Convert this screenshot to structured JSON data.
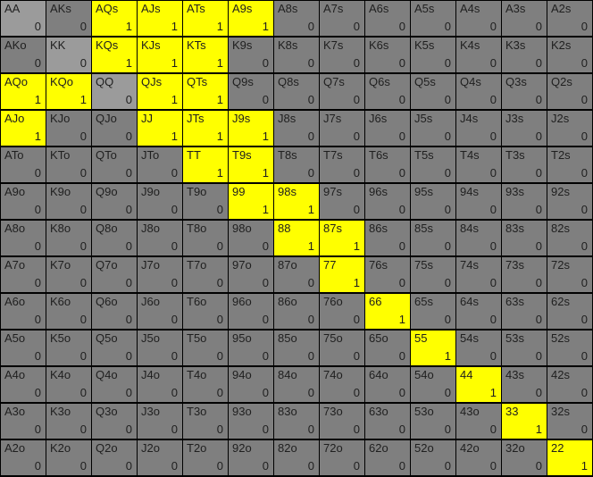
{
  "colors": {
    "selected": "#ffff00",
    "pair_unselected": "#9b9b9b",
    "unselected": "#7f7f7f",
    "grid_line": "#000000",
    "text": "#1f1f1f"
  },
  "grid": {
    "rows": [
      [
        {
          "hand": "AA",
          "value": "0",
          "state": "pair"
        },
        {
          "hand": "AKs",
          "value": "0",
          "state": "off"
        },
        {
          "hand": "AQs",
          "value": "1",
          "state": "on"
        },
        {
          "hand": "AJs",
          "value": "1",
          "state": "on"
        },
        {
          "hand": "ATs",
          "value": "1",
          "state": "on"
        },
        {
          "hand": "A9s",
          "value": "1",
          "state": "on"
        },
        {
          "hand": "A8s",
          "value": "0",
          "state": "off"
        },
        {
          "hand": "A7s",
          "value": "0",
          "state": "off"
        },
        {
          "hand": "A6s",
          "value": "0",
          "state": "off"
        },
        {
          "hand": "A5s",
          "value": "0",
          "state": "off"
        },
        {
          "hand": "A4s",
          "value": "0",
          "state": "off"
        },
        {
          "hand": "A3s",
          "value": "0",
          "state": "off"
        },
        {
          "hand": "A2s",
          "value": "0",
          "state": "off"
        }
      ],
      [
        {
          "hand": "AKo",
          "value": "0",
          "state": "off"
        },
        {
          "hand": "KK",
          "value": "0",
          "state": "pair"
        },
        {
          "hand": "KQs",
          "value": "1",
          "state": "on"
        },
        {
          "hand": "KJs",
          "value": "1",
          "state": "on"
        },
        {
          "hand": "KTs",
          "value": "1",
          "state": "on"
        },
        {
          "hand": "K9s",
          "value": "0",
          "state": "off"
        },
        {
          "hand": "K8s",
          "value": "0",
          "state": "off"
        },
        {
          "hand": "K7s",
          "value": "0",
          "state": "off"
        },
        {
          "hand": "K6s",
          "value": "0",
          "state": "off"
        },
        {
          "hand": "K5s",
          "value": "0",
          "state": "off"
        },
        {
          "hand": "K4s",
          "value": "0",
          "state": "off"
        },
        {
          "hand": "K3s",
          "value": "0",
          "state": "off"
        },
        {
          "hand": "K2s",
          "value": "0",
          "state": "off"
        }
      ],
      [
        {
          "hand": "AQo",
          "value": "1",
          "state": "on"
        },
        {
          "hand": "KQo",
          "value": "1",
          "state": "on"
        },
        {
          "hand": "QQ",
          "value": "0",
          "state": "pair"
        },
        {
          "hand": "QJs",
          "value": "1",
          "state": "on"
        },
        {
          "hand": "QTs",
          "value": "1",
          "state": "on"
        },
        {
          "hand": "Q9s",
          "value": "0",
          "state": "off"
        },
        {
          "hand": "Q8s",
          "value": "0",
          "state": "off"
        },
        {
          "hand": "Q7s",
          "value": "0",
          "state": "off"
        },
        {
          "hand": "Q6s",
          "value": "0",
          "state": "off"
        },
        {
          "hand": "Q5s",
          "value": "0",
          "state": "off"
        },
        {
          "hand": "Q4s",
          "value": "0",
          "state": "off"
        },
        {
          "hand": "Q3s",
          "value": "0",
          "state": "off"
        },
        {
          "hand": "Q2s",
          "value": "0",
          "state": "off"
        }
      ],
      [
        {
          "hand": "AJo",
          "value": "1",
          "state": "on"
        },
        {
          "hand": "KJo",
          "value": "0",
          "state": "off"
        },
        {
          "hand": "QJo",
          "value": "0",
          "state": "off"
        },
        {
          "hand": "JJ",
          "value": "1",
          "state": "on"
        },
        {
          "hand": "JTs",
          "value": "1",
          "state": "on"
        },
        {
          "hand": "J9s",
          "value": "1",
          "state": "on"
        },
        {
          "hand": "J8s",
          "value": "0",
          "state": "off"
        },
        {
          "hand": "J7s",
          "value": "0",
          "state": "off"
        },
        {
          "hand": "J6s",
          "value": "0",
          "state": "off"
        },
        {
          "hand": "J5s",
          "value": "0",
          "state": "off"
        },
        {
          "hand": "J4s",
          "value": "0",
          "state": "off"
        },
        {
          "hand": "J3s",
          "value": "0",
          "state": "off"
        },
        {
          "hand": "J2s",
          "value": "0",
          "state": "off"
        }
      ],
      [
        {
          "hand": "ATo",
          "value": "0",
          "state": "off"
        },
        {
          "hand": "KTo",
          "value": "0",
          "state": "off"
        },
        {
          "hand": "QTo",
          "value": "0",
          "state": "off"
        },
        {
          "hand": "JTo",
          "value": "0",
          "state": "off"
        },
        {
          "hand": "TT",
          "value": "1",
          "state": "on"
        },
        {
          "hand": "T9s",
          "value": "1",
          "state": "on"
        },
        {
          "hand": "T8s",
          "value": "0",
          "state": "off"
        },
        {
          "hand": "T7s",
          "value": "0",
          "state": "off"
        },
        {
          "hand": "T6s",
          "value": "0",
          "state": "off"
        },
        {
          "hand": "T5s",
          "value": "0",
          "state": "off"
        },
        {
          "hand": "T4s",
          "value": "0",
          "state": "off"
        },
        {
          "hand": "T3s",
          "value": "0",
          "state": "off"
        },
        {
          "hand": "T2s",
          "value": "0",
          "state": "off"
        }
      ],
      [
        {
          "hand": "A9o",
          "value": "0",
          "state": "off"
        },
        {
          "hand": "K9o",
          "value": "0",
          "state": "off"
        },
        {
          "hand": "Q9o",
          "value": "0",
          "state": "off"
        },
        {
          "hand": "J9o",
          "value": "0",
          "state": "off"
        },
        {
          "hand": "T9o",
          "value": "0",
          "state": "off"
        },
        {
          "hand": "99",
          "value": "1",
          "state": "on"
        },
        {
          "hand": "98s",
          "value": "1",
          "state": "on"
        },
        {
          "hand": "97s",
          "value": "0",
          "state": "off"
        },
        {
          "hand": "96s",
          "value": "0",
          "state": "off"
        },
        {
          "hand": "95s",
          "value": "0",
          "state": "off"
        },
        {
          "hand": "94s",
          "value": "0",
          "state": "off"
        },
        {
          "hand": "93s",
          "value": "0",
          "state": "off"
        },
        {
          "hand": "92s",
          "value": "0",
          "state": "off"
        }
      ],
      [
        {
          "hand": "A8o",
          "value": "0",
          "state": "off"
        },
        {
          "hand": "K8o",
          "value": "0",
          "state": "off"
        },
        {
          "hand": "Q8o",
          "value": "0",
          "state": "off"
        },
        {
          "hand": "J8o",
          "value": "0",
          "state": "off"
        },
        {
          "hand": "T8o",
          "value": "0",
          "state": "off"
        },
        {
          "hand": "98o",
          "value": "0",
          "state": "off"
        },
        {
          "hand": "88",
          "value": "1",
          "state": "on"
        },
        {
          "hand": "87s",
          "value": "1",
          "state": "on"
        },
        {
          "hand": "86s",
          "value": "0",
          "state": "off"
        },
        {
          "hand": "85s",
          "value": "0",
          "state": "off"
        },
        {
          "hand": "84s",
          "value": "0",
          "state": "off"
        },
        {
          "hand": "83s",
          "value": "0",
          "state": "off"
        },
        {
          "hand": "82s",
          "value": "0",
          "state": "off"
        }
      ],
      [
        {
          "hand": "A7o",
          "value": "0",
          "state": "off"
        },
        {
          "hand": "K7o",
          "value": "0",
          "state": "off"
        },
        {
          "hand": "Q7o",
          "value": "0",
          "state": "off"
        },
        {
          "hand": "J7o",
          "value": "0",
          "state": "off"
        },
        {
          "hand": "T7o",
          "value": "0",
          "state": "off"
        },
        {
          "hand": "97o",
          "value": "0",
          "state": "off"
        },
        {
          "hand": "87o",
          "value": "0",
          "state": "off"
        },
        {
          "hand": "77",
          "value": "1",
          "state": "on"
        },
        {
          "hand": "76s",
          "value": "0",
          "state": "off"
        },
        {
          "hand": "75s",
          "value": "0",
          "state": "off"
        },
        {
          "hand": "74s",
          "value": "0",
          "state": "off"
        },
        {
          "hand": "73s",
          "value": "0",
          "state": "off"
        },
        {
          "hand": "72s",
          "value": "0",
          "state": "off"
        }
      ],
      [
        {
          "hand": "A6o",
          "value": "0",
          "state": "off"
        },
        {
          "hand": "K6o",
          "value": "0",
          "state": "off"
        },
        {
          "hand": "Q6o",
          "value": "0",
          "state": "off"
        },
        {
          "hand": "J6o",
          "value": "0",
          "state": "off"
        },
        {
          "hand": "T6o",
          "value": "0",
          "state": "off"
        },
        {
          "hand": "96o",
          "value": "0",
          "state": "off"
        },
        {
          "hand": "86o",
          "value": "0",
          "state": "off"
        },
        {
          "hand": "76o",
          "value": "0",
          "state": "off"
        },
        {
          "hand": "66",
          "value": "1",
          "state": "on"
        },
        {
          "hand": "65s",
          "value": "0",
          "state": "off"
        },
        {
          "hand": "64s",
          "value": "0",
          "state": "off"
        },
        {
          "hand": "63s",
          "value": "0",
          "state": "off"
        },
        {
          "hand": "62s",
          "value": "0",
          "state": "off"
        }
      ],
      [
        {
          "hand": "A5o",
          "value": "0",
          "state": "off"
        },
        {
          "hand": "K5o",
          "value": "0",
          "state": "off"
        },
        {
          "hand": "Q5o",
          "value": "0",
          "state": "off"
        },
        {
          "hand": "J5o",
          "value": "0",
          "state": "off"
        },
        {
          "hand": "T5o",
          "value": "0",
          "state": "off"
        },
        {
          "hand": "95o",
          "value": "0",
          "state": "off"
        },
        {
          "hand": "85o",
          "value": "0",
          "state": "off"
        },
        {
          "hand": "75o",
          "value": "0",
          "state": "off"
        },
        {
          "hand": "65o",
          "value": "0",
          "state": "off"
        },
        {
          "hand": "55",
          "value": "1",
          "state": "on"
        },
        {
          "hand": "54s",
          "value": "0",
          "state": "off"
        },
        {
          "hand": "53s",
          "value": "0",
          "state": "off"
        },
        {
          "hand": "52s",
          "value": "0",
          "state": "off"
        }
      ],
      [
        {
          "hand": "A4o",
          "value": "0",
          "state": "off"
        },
        {
          "hand": "K4o",
          "value": "0",
          "state": "off"
        },
        {
          "hand": "Q4o",
          "value": "0",
          "state": "off"
        },
        {
          "hand": "J4o",
          "value": "0",
          "state": "off"
        },
        {
          "hand": "T4o",
          "value": "0",
          "state": "off"
        },
        {
          "hand": "94o",
          "value": "0",
          "state": "off"
        },
        {
          "hand": "84o",
          "value": "0",
          "state": "off"
        },
        {
          "hand": "74o",
          "value": "0",
          "state": "off"
        },
        {
          "hand": "64o",
          "value": "0",
          "state": "off"
        },
        {
          "hand": "54o",
          "value": "0",
          "state": "off"
        },
        {
          "hand": "44",
          "value": "1",
          "state": "on"
        },
        {
          "hand": "43s",
          "value": "0",
          "state": "off"
        },
        {
          "hand": "42s",
          "value": "0",
          "state": "off"
        }
      ],
      [
        {
          "hand": "A3o",
          "value": "0",
          "state": "off"
        },
        {
          "hand": "K3o",
          "value": "0",
          "state": "off"
        },
        {
          "hand": "Q3o",
          "value": "0",
          "state": "off"
        },
        {
          "hand": "J3o",
          "value": "0",
          "state": "off"
        },
        {
          "hand": "T3o",
          "value": "0",
          "state": "off"
        },
        {
          "hand": "93o",
          "value": "0",
          "state": "off"
        },
        {
          "hand": "83o",
          "value": "0",
          "state": "off"
        },
        {
          "hand": "73o",
          "value": "0",
          "state": "off"
        },
        {
          "hand": "63o",
          "value": "0",
          "state": "off"
        },
        {
          "hand": "53o",
          "value": "0",
          "state": "off"
        },
        {
          "hand": "43o",
          "value": "0",
          "state": "off"
        },
        {
          "hand": "33",
          "value": "1",
          "state": "on"
        },
        {
          "hand": "32s",
          "value": "0",
          "state": "off"
        }
      ],
      [
        {
          "hand": "A2o",
          "value": "0",
          "state": "off"
        },
        {
          "hand": "K2o",
          "value": "0",
          "state": "off"
        },
        {
          "hand": "Q2o",
          "value": "0",
          "state": "off"
        },
        {
          "hand": "J2o",
          "value": "0",
          "state": "off"
        },
        {
          "hand": "T2o",
          "value": "0",
          "state": "off"
        },
        {
          "hand": "92o",
          "value": "0",
          "state": "off"
        },
        {
          "hand": "82o",
          "value": "0",
          "state": "off"
        },
        {
          "hand": "72o",
          "value": "0",
          "state": "off"
        },
        {
          "hand": "62o",
          "value": "0",
          "state": "off"
        },
        {
          "hand": "52o",
          "value": "0",
          "state": "off"
        },
        {
          "hand": "42o",
          "value": "0",
          "state": "off"
        },
        {
          "hand": "32o",
          "value": "0",
          "state": "off"
        },
        {
          "hand": "22",
          "value": "1",
          "state": "on"
        }
      ]
    ]
  }
}
